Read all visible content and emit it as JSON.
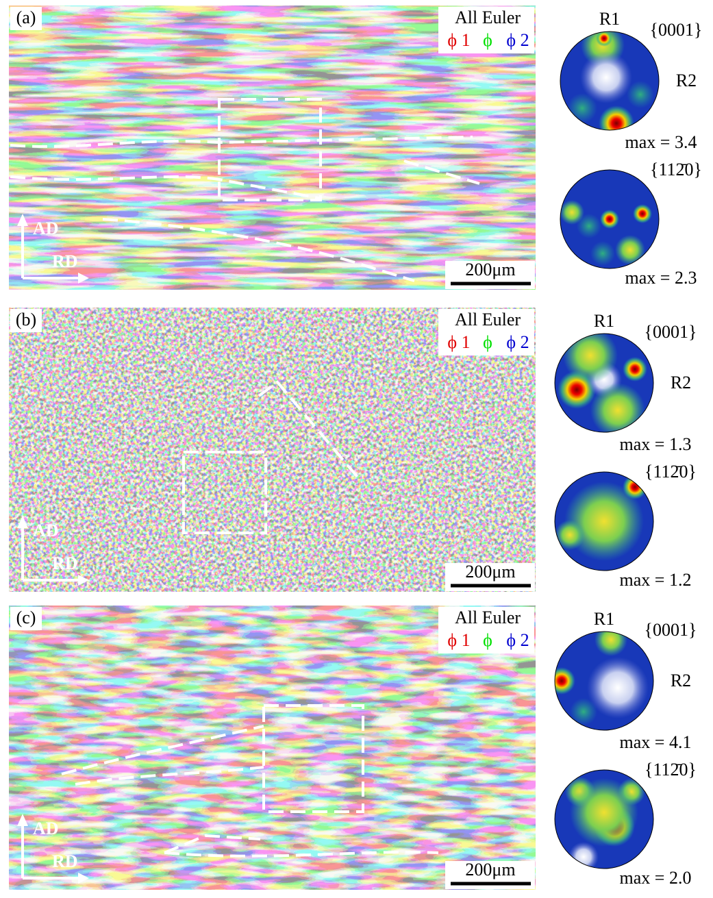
{
  "panels": [
    {
      "label": "(a)",
      "legend_title": "All Euler",
      "legend_phi1": "ϕ 1",
      "legend_phi": "ϕ",
      "legend_phi2": "ϕ 2",
      "scale_bar": "200μm",
      "axis_ad": "AD",
      "axis_rd": "RD",
      "pole_figures": [
        {
          "r1": "R1",
          "plane": "{0001}",
          "r2": "R2",
          "max": "max = 3.4"
        },
        {
          "plane": "{112̄0}",
          "max": "max = 2.3"
        }
      ]
    },
    {
      "label": "(b)",
      "legend_title": "All Euler",
      "legend_phi1": "ϕ 1",
      "legend_phi": "ϕ",
      "legend_phi2": "ϕ 2",
      "scale_bar": "200μm",
      "axis_ad": "AD",
      "axis_rd": "RD",
      "pole_figures": [
        {
          "r1": "R1",
          "plane": "{0001}",
          "r2": "R2",
          "max": "max = 1.3"
        },
        {
          "plane": "{112̄0}",
          "max": "max = 1.2"
        }
      ]
    },
    {
      "label": "(c)",
      "legend_title": "All Euler",
      "legend_phi1": "ϕ 1",
      "legend_phi": "ϕ",
      "legend_phi2": "ϕ 2",
      "scale_bar": "200μm",
      "axis_ad": "AD",
      "axis_rd": "RD",
      "pole_figures": [
        {
          "r1": "R1",
          "plane": "{0001}",
          "r2": "R2",
          "max": "max = 4.1"
        },
        {
          "plane": "{112̄0}",
          "max": "max = 2.0"
        }
      ]
    }
  ]
}
